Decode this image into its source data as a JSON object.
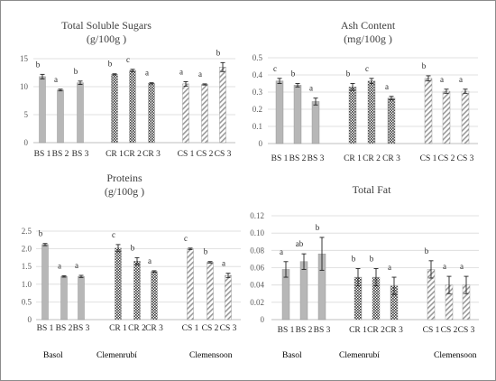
{
  "group_labels": [
    "Basol",
    "Clemenrubí",
    "Clemensoon"
  ],
  "series_colors": {
    "basol": "#b3b3b3",
    "clemenrubi": "#595959",
    "clemensoon": "#a6a6a6"
  },
  "chart_data": [
    {
      "type": "bar",
      "title": "Total Soluble Sugars",
      "subtitle": "(g/100g )",
      "categories": [
        "BS 1",
        "BS 2",
        "BS 3",
        "CR 1",
        "CR 2",
        "CR 3",
        "CS 1",
        "CS 2",
        "CS 3"
      ],
      "values": [
        11.8,
        9.4,
        10.7,
        12.2,
        12.9,
        10.6,
        10.5,
        10.4,
        13.5
      ],
      "errors": [
        0.4,
        0.15,
        0.3,
        0.1,
        0.2,
        0.1,
        0.4,
        0.1,
        0.8
      ],
      "letters": [
        "b",
        "a",
        "b",
        "b",
        "c",
        "a",
        "a",
        "a",
        "b"
      ],
      "ylim": [
        0,
        15
      ],
      "yticks": [
        "0",
        "5",
        "10",
        "15"
      ],
      "ytick_values": [
        0,
        5,
        10,
        15
      ]
    },
    {
      "type": "bar",
      "title": "Ash Content",
      "subtitle": "(mg/100g )",
      "categories": [
        "BS 1",
        "BS 2",
        "BS 3",
        "CR 1",
        "CR 2",
        "CR 3",
        "CS 1",
        "CS 2",
        "CS 3"
      ],
      "values": [
        0.365,
        0.34,
        0.245,
        0.33,
        0.365,
        0.265,
        0.38,
        0.305,
        0.305
      ],
      "errors": [
        0.015,
        0.01,
        0.02,
        0.02,
        0.015,
        0.01,
        0.015,
        0.012,
        0.012
      ],
      "letters": [
        "c",
        "b",
        "a",
        "b",
        "c",
        "a",
        "b",
        "a",
        "a"
      ],
      "ylim": [
        0,
        0.5
      ],
      "yticks": [
        "0",
        "0.1",
        "0.2",
        "0.3",
        "0.4",
        "0.5"
      ],
      "ytick_values": [
        0,
        0.1,
        0.2,
        0.3,
        0.4,
        0.5
      ]
    },
    {
      "type": "bar",
      "title": "Proteins",
      "subtitle": "(g/100g )",
      "categories": [
        "BS 1",
        "BS 2",
        "BS 3",
        "CR 1",
        "CR 2",
        "CR 3",
        "CS 1",
        "CS 2",
        "CS 3"
      ],
      "values": [
        2.12,
        1.22,
        1.22,
        2.02,
        1.65,
        1.36,
        2.0,
        1.62,
        1.25
      ],
      "errors": [
        0.03,
        0.02,
        0.03,
        0.1,
        0.1,
        0.02,
        0.02,
        0.02,
        0.06
      ],
      "letters": [
        "b",
        "a",
        "a",
        "c",
        "b",
        "a",
        "c",
        "b",
        "a"
      ],
      "ylim": [
        0,
        2.5
      ],
      "yticks": [
        "0",
        "0.5",
        "1.0",
        "1.5",
        "2.0",
        "2.5"
      ],
      "ytick_values": [
        0,
        0.5,
        1.0,
        1.5,
        2.0,
        2.5
      ]
    },
    {
      "type": "bar",
      "title": "Total Fat",
      "subtitle": "",
      "categories": [
        "BS 1",
        "BS 2",
        "BS 3",
        "CR 1",
        "CR 2",
        "CR 3",
        "CS 1",
        "CS 2",
        "CS 3"
      ],
      "values": [
        0.058,
        0.067,
        0.076,
        0.049,
        0.049,
        0.039,
        0.058,
        0.04,
        0.04
      ],
      "errors": [
        0.009,
        0.009,
        0.019,
        0.01,
        0.01,
        0.01,
        0.01,
        0.01,
        0.01
      ],
      "letters": [
        "a",
        "ab",
        "b",
        "b",
        "b",
        "a",
        "b",
        "a",
        "a"
      ],
      "ylim": [
        0,
        0.12
      ],
      "yticks": [
        "0",
        "0.02",
        "0.04",
        "0.06",
        "0.08",
        "0.10",
        "0.12"
      ],
      "ytick_values": [
        0,
        0.02,
        0.04,
        0.06,
        0.08,
        0.1,
        0.12
      ]
    }
  ]
}
